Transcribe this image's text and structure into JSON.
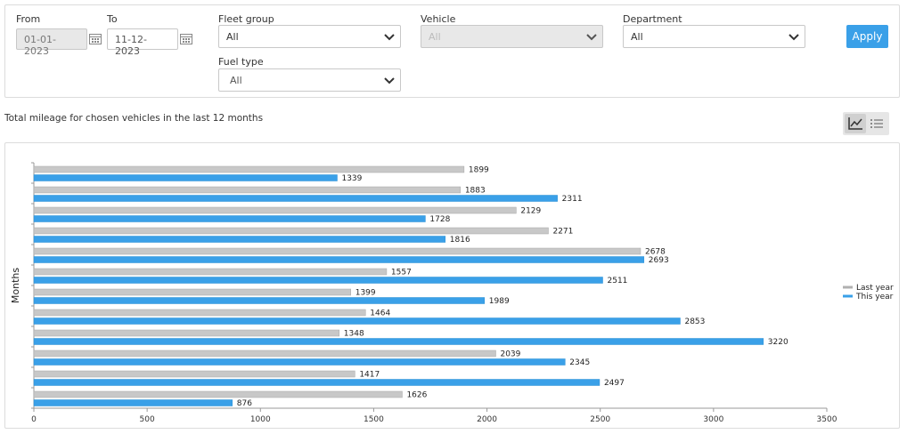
{
  "filters": {
    "from": {
      "label": "From",
      "value": "01-01-2023"
    },
    "to": {
      "label": "To",
      "value": "11-12-2023"
    },
    "fleet_group": {
      "label": "Fleet group",
      "value": "All"
    },
    "vehicle": {
      "label": "Vehicle",
      "value": "All"
    },
    "department": {
      "label": "Department",
      "value": "All"
    },
    "fuel_type": {
      "label": "Fuel type",
      "value": "All"
    },
    "apply_label": "Apply"
  },
  "section": {
    "title": "Total mileage for chosen vehicles in the last 12 months",
    "view_icons": [
      "line-chart-icon",
      "list-icon"
    ]
  },
  "colors": {
    "last_year": "#c8c8c8",
    "this_year": "#3aa0e8",
    "accent": "#3aa0e8"
  },
  "chart_data": {
    "type": "bar",
    "orientation": "horizontal",
    "ylabel": "Months",
    "xlabel": "",
    "xlim": [
      0,
      3500
    ],
    "xticks": [
      0,
      500,
      1000,
      1500,
      2000,
      2500,
      3000,
      3500
    ],
    "categories": [
      "",
      "",
      "",
      "",
      "",
      "",
      "",
      "",
      "",
      "",
      "",
      ""
    ],
    "series": [
      {
        "name": "Last year",
        "values": [
          1899,
          1883,
          2129,
          2271,
          2678,
          1557,
          1399,
          1464,
          1348,
          2039,
          1417,
          1626
        ]
      },
      {
        "name": "This year",
        "values": [
          1339,
          2311,
          1728,
          1816,
          2693,
          2511,
          1989,
          2853,
          3220,
          2345,
          2497,
          876
        ]
      }
    ],
    "legend": "right",
    "data_labels": true,
    "grid": false
  }
}
